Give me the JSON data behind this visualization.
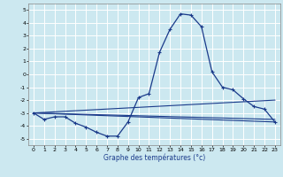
{
  "xlabel": "Graphe des températures (°c)",
  "background_color": "#cce8f0",
  "grid_color": "#ffffff",
  "line_color": "#1a3a8a",
  "xlim": [
    -0.5,
    23.5
  ],
  "ylim": [
    -5.5,
    5.5
  ],
  "yticks": [
    -5,
    -4,
    -3,
    -2,
    -1,
    0,
    1,
    2,
    3,
    4,
    5
  ],
  "xticks": [
    0,
    1,
    2,
    3,
    4,
    5,
    6,
    7,
    8,
    9,
    10,
    11,
    12,
    13,
    14,
    15,
    16,
    17,
    18,
    19,
    20,
    21,
    22,
    23
  ],
  "main_x": [
    0,
    1,
    2,
    3,
    4,
    5,
    6,
    7,
    8,
    9,
    10,
    11,
    12,
    13,
    14,
    15,
    16,
    17,
    18,
    19,
    20,
    21,
    22,
    23
  ],
  "main_y": [
    -3.0,
    -3.5,
    -3.3,
    -3.3,
    -3.8,
    -4.1,
    -4.5,
    -4.8,
    -4.8,
    -3.7,
    -1.8,
    -1.5,
    1.7,
    3.5,
    4.7,
    4.6,
    3.7,
    0.2,
    -1.0,
    -1.2,
    -1.9,
    -2.5,
    -2.7,
    -3.7
  ],
  "trend1_x": [
    0,
    23
  ],
  "trend1_y": [
    -3.0,
    -3.7
  ],
  "trend2_x": [
    0,
    23
  ],
  "trend2_y": [
    -3.0,
    -2.0
  ],
  "trend3_x": [
    0,
    23
  ],
  "trend3_y": [
    -3.0,
    -3.5
  ]
}
